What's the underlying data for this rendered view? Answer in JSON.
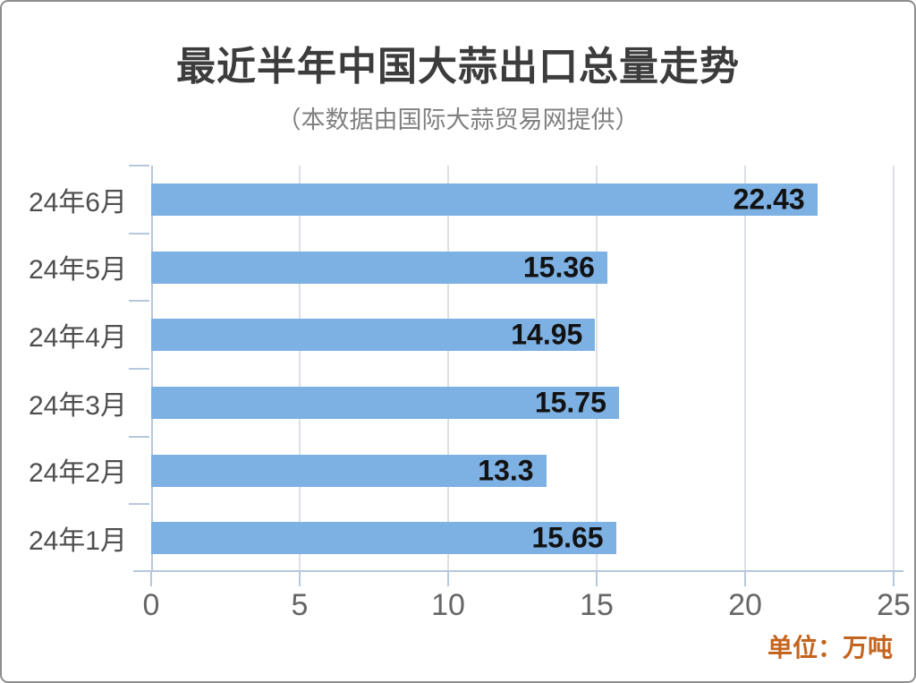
{
  "title": "最近半年中国大蒜出口总量走势",
  "subtitle": "（本数据由国际大蒜贸易网提供）",
  "unit_label": "单位：万吨",
  "chart_data": {
    "type": "bar",
    "orientation": "horizontal",
    "title": "最近半年中国大蒜出口总量走势",
    "subtitle": "（本数据由国际大蒜贸易网提供）",
    "unit": "万吨",
    "categories": [
      "24年6月",
      "24年5月",
      "24年4月",
      "24年3月",
      "24年2月",
      "24年1月"
    ],
    "values": [
      22.43,
      15.36,
      14.95,
      15.75,
      13.3,
      15.65
    ],
    "value_labels": [
      "22.43",
      "15.36",
      "14.95",
      "15.75",
      "13.3",
      "15.65"
    ],
    "xlim": [
      0,
      25
    ],
    "x_ticks": [
      0,
      5,
      10,
      15,
      20,
      25
    ],
    "grid": "vertical-only",
    "legend": "none",
    "value_label_position": "inside-end",
    "colors": {
      "bar": "#7DB1E4",
      "axis": "#B6C8DB",
      "gridline": "#DCE0E5",
      "title_text": "#3C3C3C",
      "subtitle_text": "#808080",
      "category_text": "#4E4E4E",
      "tick_text": "#666666",
      "value_text": "#121212",
      "unit_text": "#C4641E",
      "card_border": "#8E8E8E",
      "background": "#FFFFFF"
    }
  }
}
